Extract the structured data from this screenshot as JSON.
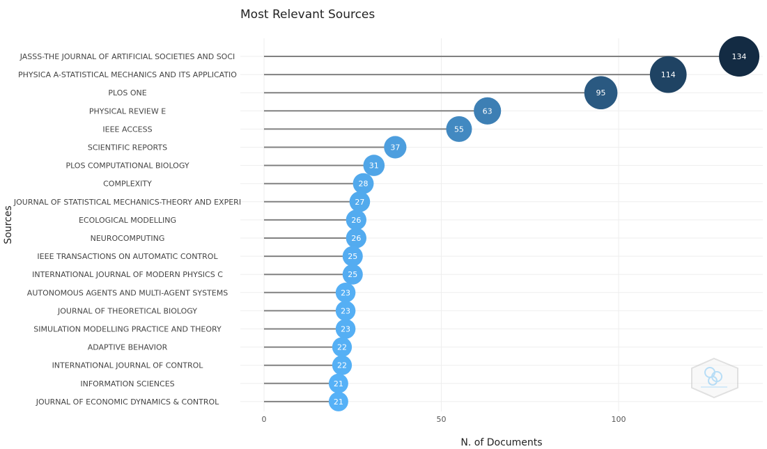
{
  "chart_data": {
    "type": "lollipop",
    "title": "Most Relevant Sources",
    "xlabel": "N. of Documents",
    "ylabel": "Sources",
    "xlim": [
      0,
      140
    ],
    "xticks": [
      0,
      50,
      100
    ],
    "grid": true,
    "color_scale": {
      "low": "#56b1f7",
      "high": "#132b43"
    },
    "categories": [
      "JASSS-THE JOURNAL OF ARTIFICIAL SOCIETIES AND SOCI",
      "PHYSICA A-STATISTICAL MECHANICS AND ITS APPLICATIO",
      "PLOS ONE",
      "PHYSICAL REVIEW E",
      "IEEE ACCESS",
      "SCIENTIFIC REPORTS",
      "PLOS COMPUTATIONAL BIOLOGY",
      "COMPLEXITY",
      "JOURNAL OF STATISTICAL MECHANICS-THEORY AND EXPERI",
      "ECOLOGICAL MODELLING",
      "NEUROCOMPUTING",
      "IEEE TRANSACTIONS ON AUTOMATIC CONTROL",
      "INTERNATIONAL JOURNAL OF MODERN PHYSICS C",
      "AUTONOMOUS AGENTS AND MULTI-AGENT SYSTEMS",
      "JOURNAL OF THEORETICAL BIOLOGY",
      "SIMULATION MODELLING PRACTICE AND THEORY",
      "ADAPTIVE BEHAVIOR",
      "INTERNATIONAL JOURNAL OF CONTROL",
      "INFORMATION SCIENCES",
      "JOURNAL OF ECONOMIC DYNAMICS & CONTROL"
    ],
    "values": [
      134,
      114,
      95,
      63,
      55,
      37,
      31,
      28,
      27,
      26,
      26,
      25,
      25,
      23,
      23,
      23,
      22,
      22,
      21,
      21
    ]
  },
  "watermark_icon": "bibliometrix-hexagon-logo"
}
